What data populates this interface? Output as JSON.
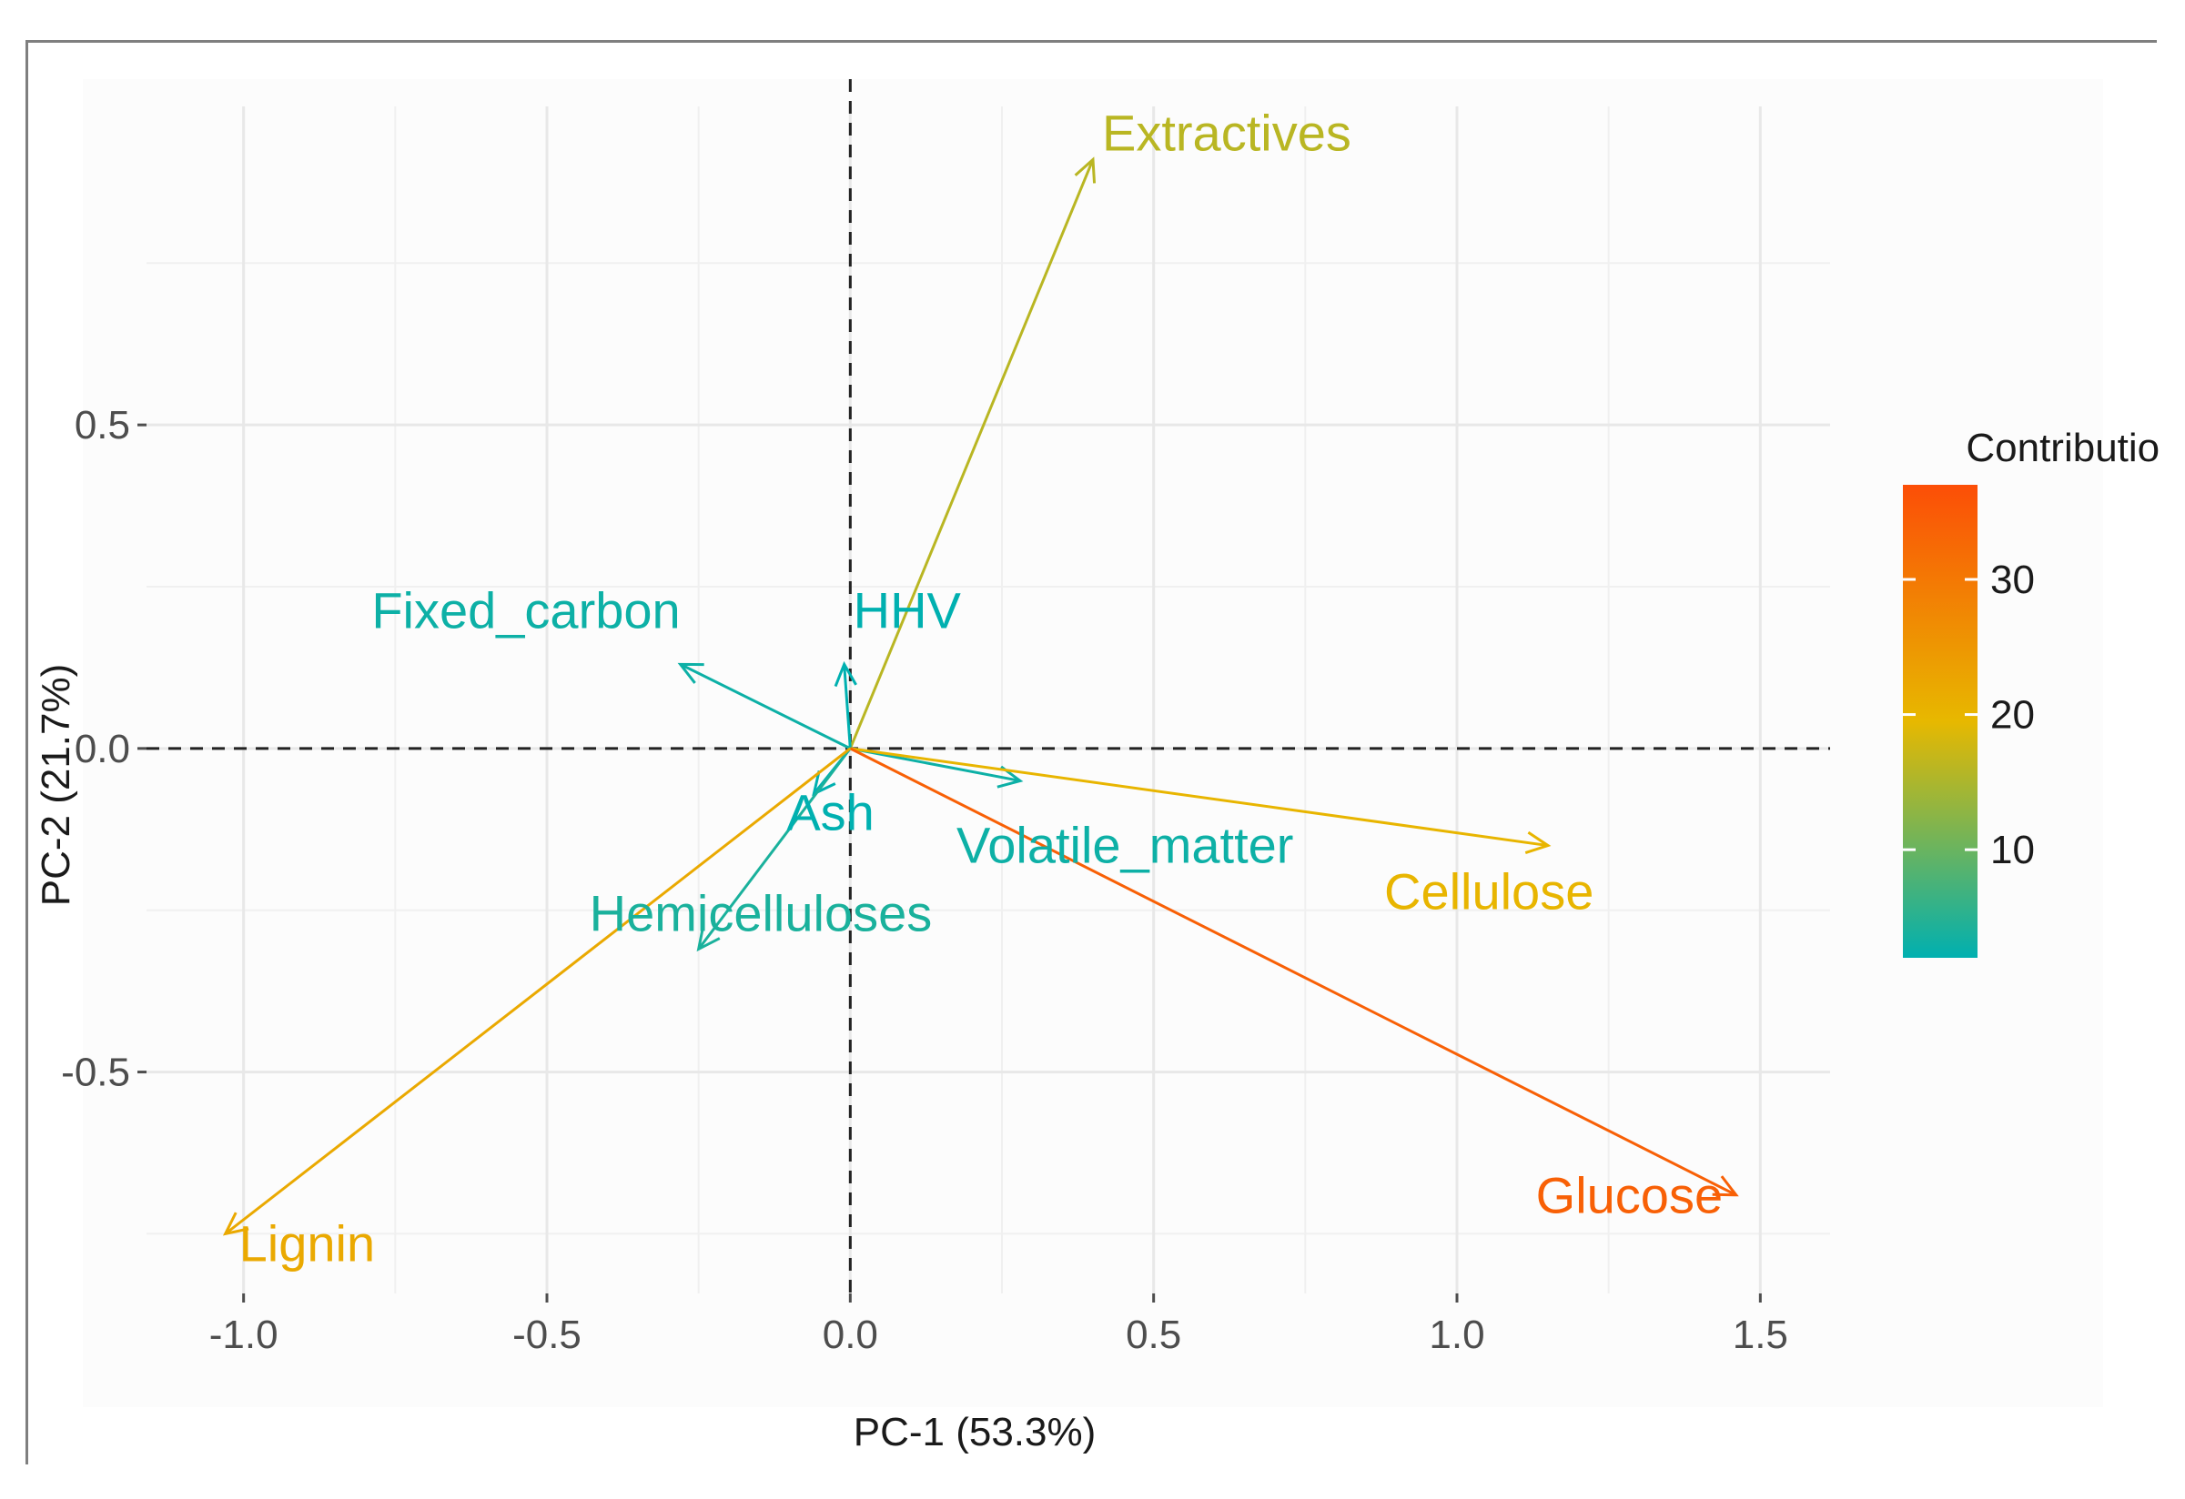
{
  "chart_data": {
    "type": "pca-variable-biplot",
    "xlabel": "PC-1 (53.3%)",
    "ylabel": "PC-2 (21.7%)",
    "xlim": [
      -1.1,
      1.57
    ],
    "ylim": [
      -0.8,
      0.95
    ],
    "x_ticks": [
      -1.0,
      -0.5,
      0.0,
      0.5,
      1.0,
      1.5
    ],
    "x_tick_labels": [
      "-1.0",
      "-0.5",
      "0.0",
      "0.5",
      "1.0",
      "1.5"
    ],
    "y_ticks": [
      -0.5,
      0.0,
      0.5
    ],
    "y_tick_labels": [
      "-0.5",
      "0.0",
      "0.5"
    ],
    "grid": true,
    "reference_lines": {
      "x": 0,
      "y": 0,
      "style": "dashed"
    },
    "legend": {
      "title": "Contribution",
      "placement": "right",
      "range": [
        2,
        37
      ],
      "ticks": [
        10,
        20,
        30
      ],
      "tick_labels": [
        "10",
        "20",
        "30"
      ],
      "colors": [
        "#00b0b0",
        "#e7b800",
        "#fc4e07"
      ]
    },
    "variables": [
      {
        "name": "Extractives",
        "x": 0.4,
        "y": 0.91,
        "contribution": 16
      },
      {
        "name": "Fixed_carbon",
        "x": -0.28,
        "y": 0.13,
        "contribution": 3
      },
      {
        "name": "HHV",
        "x": -0.01,
        "y": 0.13,
        "contribution": 2
      },
      {
        "name": "Ash",
        "x": -0.06,
        "y": -0.07,
        "contribution": 2
      },
      {
        "name": "Volatile_matter",
        "x": 0.28,
        "y": -0.05,
        "contribution": 3
      },
      {
        "name": "Hemicelluloses",
        "x": -0.25,
        "y": -0.31,
        "contribution": 4
      },
      {
        "name": "Cellulose",
        "x": 1.15,
        "y": -0.15,
        "contribution": 20
      },
      {
        "name": "Glucose",
        "x": 1.46,
        "y": -0.69,
        "contribution": 34
      },
      {
        "name": "Lignin",
        "x": -1.03,
        "y": -0.75,
        "contribution": 22
      }
    ]
  }
}
